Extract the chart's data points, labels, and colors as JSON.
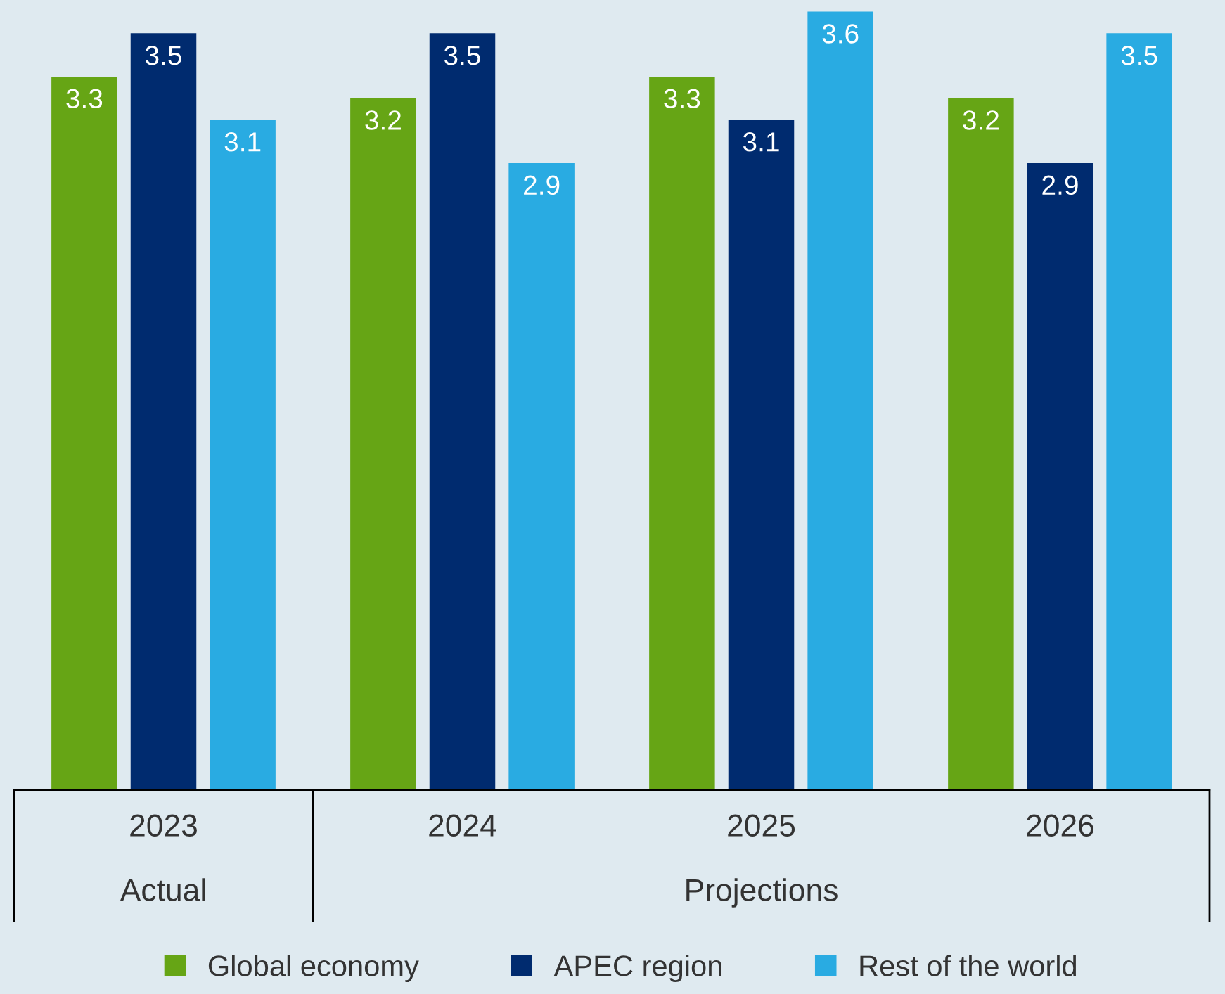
{
  "chart_data": {
    "type": "bar",
    "categories": [
      "2023",
      "2024",
      "2025",
      "2026"
    ],
    "series": [
      {
        "name": "Global economy",
        "color": "#66a515",
        "values": [
          3.3,
          3.2,
          3.3,
          3.2
        ]
      },
      {
        "name": "APEC region",
        "color": "#002b6f",
        "values": [
          3.5,
          3.5,
          3.1,
          2.9
        ]
      },
      {
        "name": "Rest of the world",
        "color": "#29abe2",
        "values": [
          3.1,
          2.9,
          3.6,
          3.5
        ]
      }
    ],
    "annotations": [
      "Actual",
      "Projections"
    ],
    "data_labels": true,
    "legend": "bottom",
    "grid": false,
    "tick_labels": "x"
  }
}
